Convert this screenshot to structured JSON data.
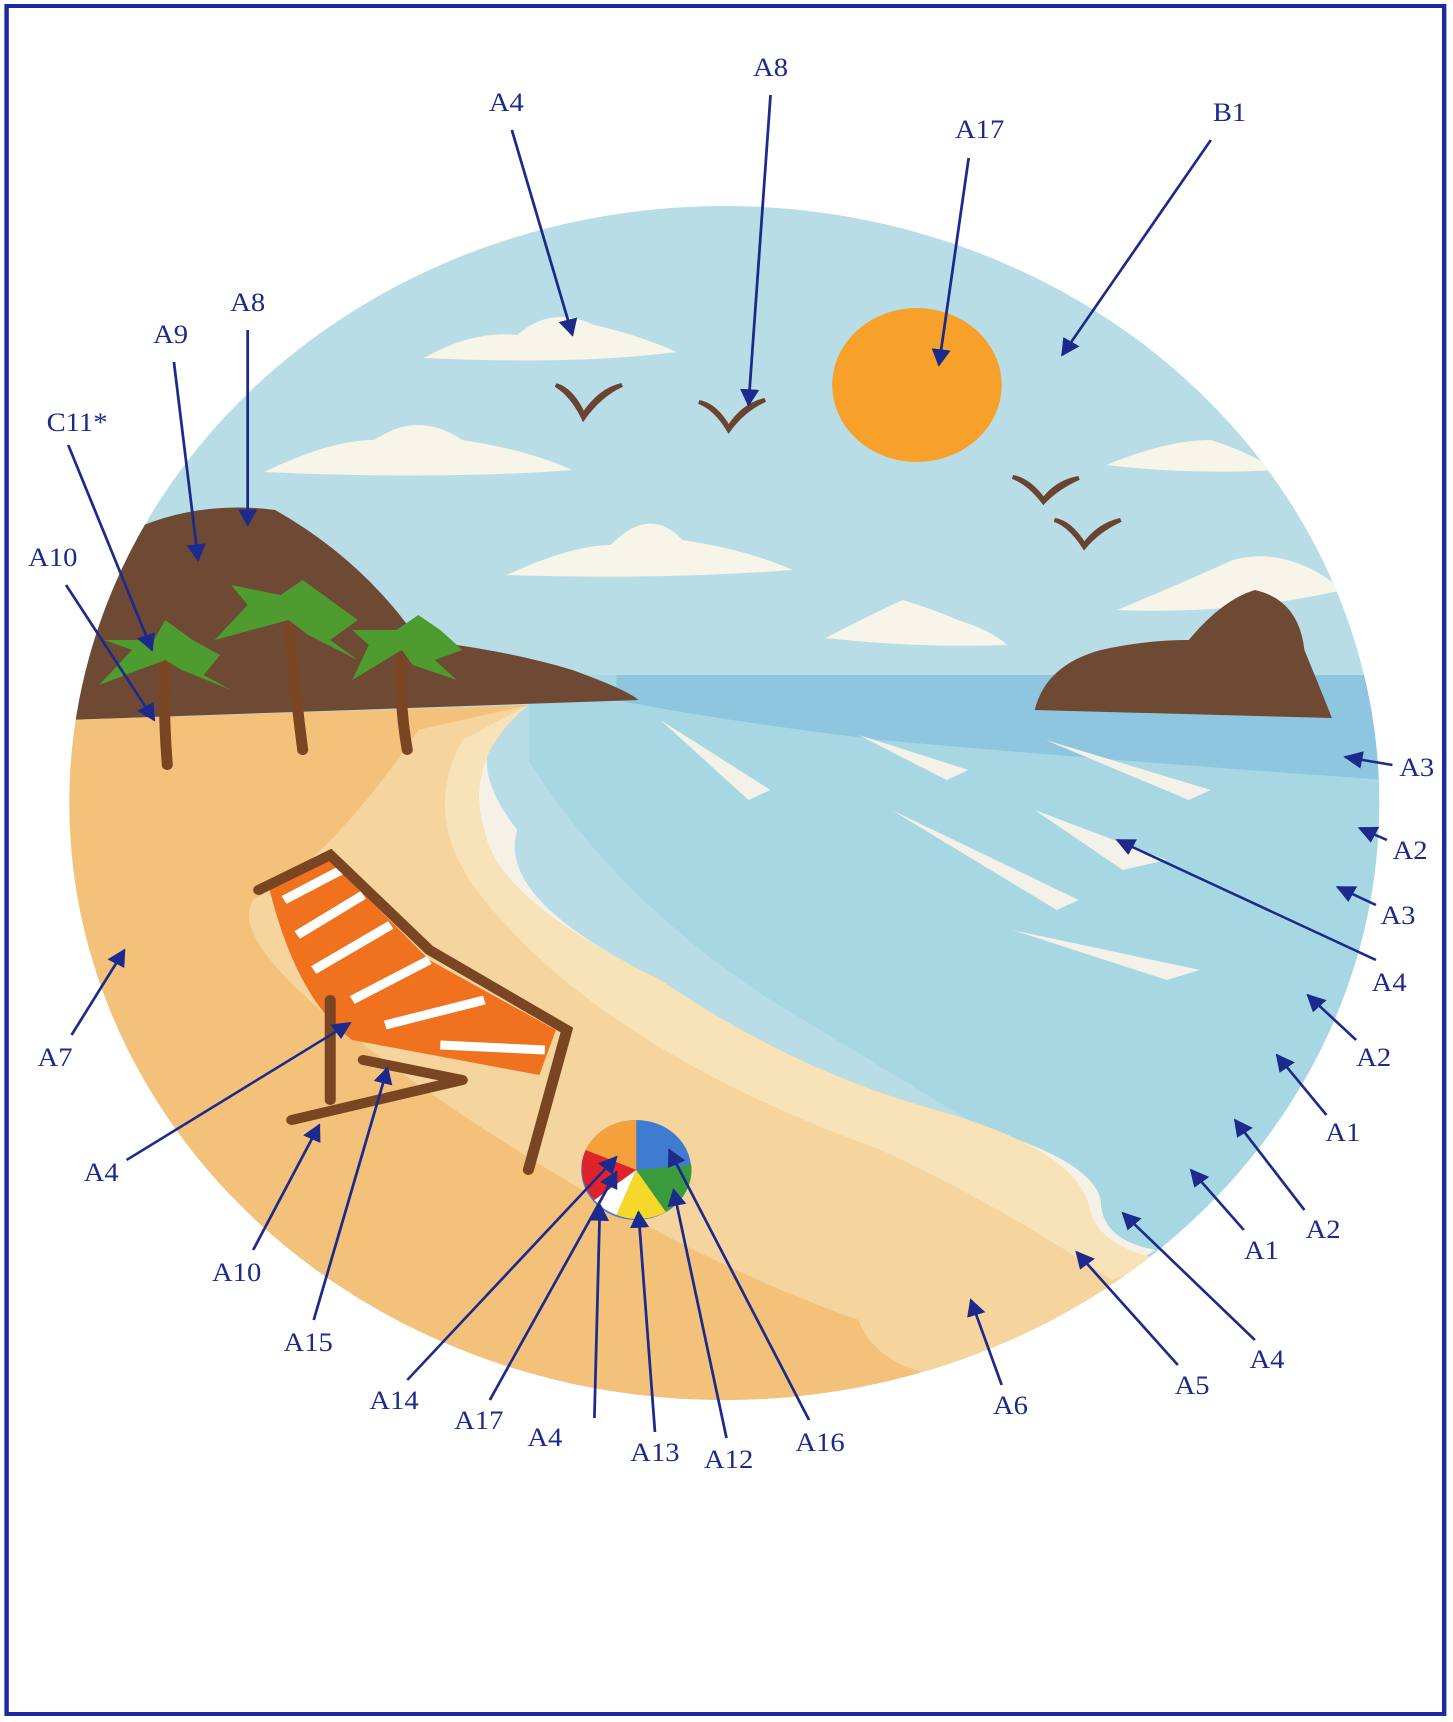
{
  "labels": [
    "A4",
    "A8",
    "A17",
    "B1",
    "A8",
    "A9",
    "C11*",
    "A10",
    "A7",
    "A3",
    "A2",
    "A3",
    "A4",
    "A2",
    "A1",
    "A2",
    "A1",
    "A4",
    "A5",
    "A6",
    "A4",
    "A10",
    "A15",
    "A14",
    "A17",
    "A4",
    "A13",
    "A12",
    "A16"
  ]
}
